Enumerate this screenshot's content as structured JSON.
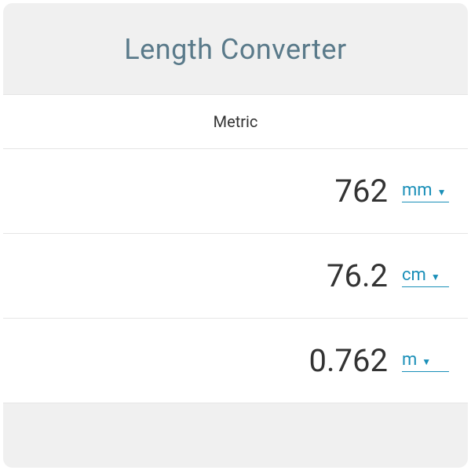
{
  "title": "Length Converter",
  "section_label": "Metric",
  "rows": [
    {
      "value": "762",
      "unit": "mm"
    },
    {
      "value": "76.2",
      "unit": "cm"
    },
    {
      "value": "0.762",
      "unit": "m"
    }
  ],
  "colors": {
    "title_color": "#5a7a8a",
    "link_color": "#1a8fb8",
    "text_color": "#333333",
    "card_bg": "#f0f0f0",
    "row_bg": "#ffffff",
    "border_color": "#e5e5e5"
  }
}
